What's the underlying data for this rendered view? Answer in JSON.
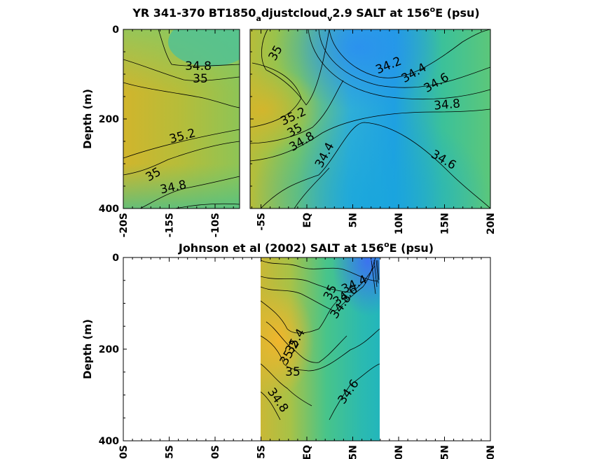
{
  "chart_data": [
    {
      "type": "heatmap",
      "title": "YR 341-370 BT1850",
      "title_sub1": "a",
      "title_mid": "djustcloud",
      "title_sub2": "v",
      "title_rest": "2.9 SALT at 156",
      "title_sup": "o",
      "title_end": "E (psu)",
      "ylabel": "Depth (m)",
      "yticks": [
        "0",
        "200",
        "400"
      ],
      "xticks": [
        "-20S",
        "-15S",
        "-10S",
        "-5S",
        "EQ",
        "5N",
        "10N",
        "15N",
        "20N"
      ],
      "xlim": [
        -20,
        20
      ],
      "ylim": [
        0,
        400
      ],
      "contour_labels": [
        "34.8",
        "35",
        "35.2",
        "35",
        "34.8",
        "35",
        "35.2",
        "35",
        "34.8",
        "34.4",
        "34.2",
        "34.4",
        "34.6",
        "34.8",
        "34.6"
      ]
    },
    {
      "type": "heatmap",
      "title": "Johnson et al (2002) SALT at 156",
      "title_sup": "o",
      "title_end": "E (psu)",
      "ylabel": "Depth (m)",
      "yticks": [
        "0",
        "200",
        "400"
      ],
      "xticks": [
        "-20S",
        "-15S",
        "-10S",
        "-5S",
        "EQ",
        "5N",
        "10N",
        "15N",
        "20N"
      ],
      "xlim": [
        -20,
        20
      ],
      "ylim": [
        0,
        400
      ],
      "contour_labels": [
        "34.4",
        "34.6",
        "34.8",
        "35",
        "35.4",
        "35.2",
        "35",
        "34.8",
        "34.6"
      ]
    }
  ]
}
